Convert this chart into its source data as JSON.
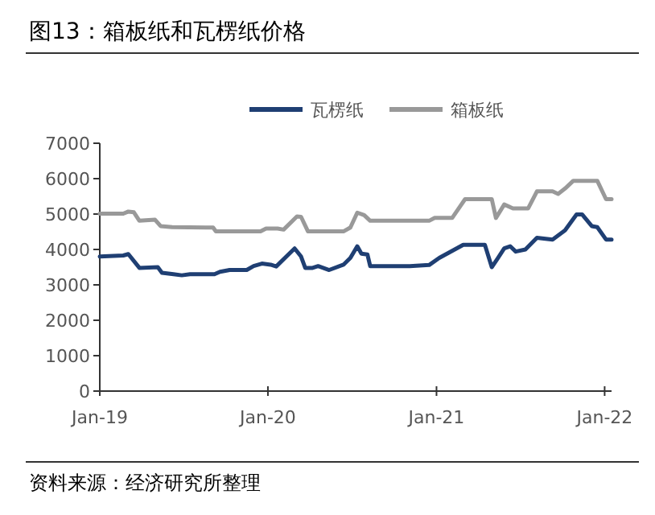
{
  "chart_data": {
    "type": "line",
    "title": "图13：箱板纸和瓦楞纸价格",
    "annotations": [
      "资料来源：经济研究所整理"
    ],
    "legend": "top",
    "grid": false,
    "line_style": "solid",
    "xlim": [
      "2019-01-01",
      "2022-01-16"
    ],
    "xticks": [
      {
        "value": "2019-01-01",
        "label": "Jan-19"
      },
      {
        "value": "2020-01-01",
        "label": "Jan-20"
      },
      {
        "value": "2021-01-01",
        "label": "Jan-21"
      },
      {
        "value": "2022-01-01",
        "label": "Jan-22"
      }
    ],
    "ylim": [
      0,
      7000
    ],
    "yticks": [
      0,
      1000,
      2000,
      3000,
      4000,
      5000,
      6000,
      7000
    ],
    "series": [
      {
        "name": "瓦楞纸",
        "color": "#1f3f73",
        "x": [
          "2019-01-01",
          "2019-02-21",
          "2019-03-04",
          "2019-03-28",
          "2019-05-07",
          "2019-05-16",
          "2019-06-10",
          "2019-06-28",
          "2019-07-16",
          "2019-09-07",
          "2019-09-19",
          "2019-10-10",
          "2019-11-16",
          "2019-12-01",
          "2019-12-19",
          "2020-01-07",
          "2020-01-19",
          "2020-02-28",
          "2020-03-13",
          "2020-03-22",
          "2020-04-07",
          "2020-04-19",
          "2020-05-13",
          "2020-06-13",
          "2020-06-28",
          "2020-07-13",
          "2020-07-22",
          "2020-08-04",
          "2020-08-10",
          "2020-11-04",
          "2020-12-16",
          "2021-01-07",
          "2021-02-28",
          "2021-04-16",
          "2021-05-01",
          "2021-05-13",
          "2021-05-28",
          "2021-06-10",
          "2021-06-22",
          "2021-07-13",
          "2021-08-07",
          "2021-09-10",
          "2021-10-07",
          "2021-11-01",
          "2021-11-13",
          "2021-12-04",
          "2021-12-16",
          "2022-01-04",
          "2022-01-16"
        ],
        "values": [
          3800,
          3830,
          3870,
          3480,
          3500,
          3340,
          3300,
          3270,
          3300,
          3300,
          3370,
          3420,
          3420,
          3530,
          3600,
          3570,
          3520,
          4030,
          3800,
          3480,
          3480,
          3530,
          3420,
          3570,
          3760,
          4090,
          3880,
          3860,
          3530,
          3530,
          3560,
          3760,
          4130,
          4130,
          3500,
          3730,
          4030,
          4090,
          3940,
          4000,
          4330,
          4280,
          4540,
          4990,
          4990,
          4660,
          4630,
          4280,
          4280
        ]
      },
      {
        "name": "箱板纸",
        "color": "#999999",
        "x": [
          "2019-01-01",
          "2019-02-21",
          "2019-03-04",
          "2019-03-16",
          "2019-03-28",
          "2019-05-01",
          "2019-05-13",
          "2019-06-07",
          "2019-09-04",
          "2019-09-10",
          "2019-12-16",
          "2019-12-28",
          "2020-01-22",
          "2020-02-04",
          "2020-03-04",
          "2020-03-13",
          "2020-03-28",
          "2020-06-13",
          "2020-06-28",
          "2020-07-13",
          "2020-07-28",
          "2020-08-10",
          "2020-12-16",
          "2020-12-28",
          "2021-02-04",
          "2021-03-04",
          "2021-05-01",
          "2021-05-10",
          "2021-05-28",
          "2021-06-16",
          "2021-07-19",
          "2021-08-07",
          "2021-09-10",
          "2021-09-22",
          "2021-10-07",
          "2021-10-25",
          "2021-12-16",
          "2022-01-04",
          "2022-01-16"
        ],
        "values": [
          5010,
          5010,
          5070,
          5050,
          4810,
          4840,
          4660,
          4630,
          4620,
          4510,
          4510,
          4590,
          4590,
          4560,
          4930,
          4920,
          4510,
          4510,
          4620,
          5040,
          4970,
          4810,
          4810,
          4890,
          4890,
          5420,
          5420,
          4890,
          5270,
          5160,
          5160,
          5640,
          5640,
          5570,
          5720,
          5940,
          5940,
          5420,
          5420
        ]
      }
    ]
  }
}
